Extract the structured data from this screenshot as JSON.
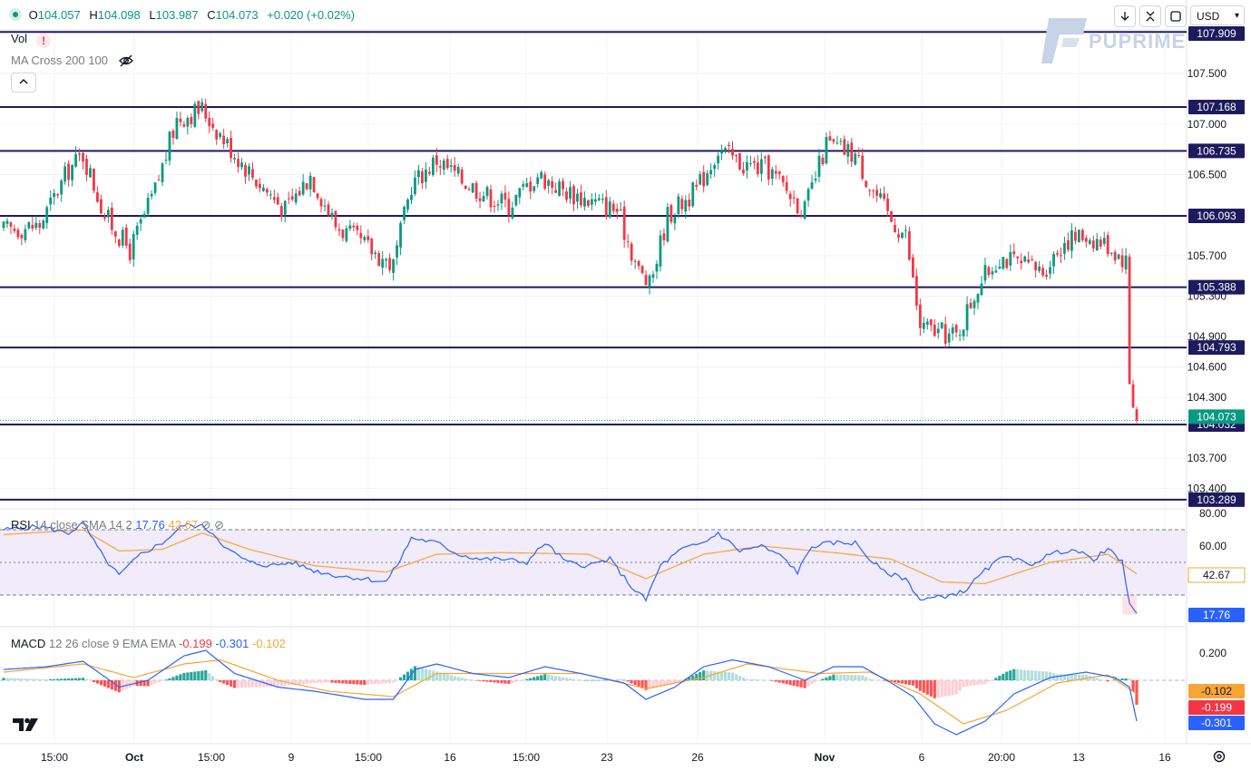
{
  "header": {
    "ohlc": [
      {
        "key": "O",
        "value": "104.057"
      },
      {
        "key": "H",
        "value": "104.098"
      },
      {
        "key": "L",
        "value": "103.987"
      },
      {
        "key": "C",
        "value": "104.073"
      }
    ],
    "change": "+0.020 (+0.02%)",
    "vol_label": "Vol",
    "ma_label": "MA Cross 200 100",
    "currency": "USD",
    "logo_text": "PUPRIME",
    "tv_logo": "17"
  },
  "colors": {
    "up": "#089981",
    "down": "#f23645",
    "level": "#1e1a5e",
    "rsi_line": "#2962ff",
    "rsi_sma": "#f7a534",
    "rsi_band": "#f1ebfa",
    "macd_line": "#2962ff",
    "signal_line": "#f7a534",
    "last_price_bg": "#089981",
    "level_label_bg": "#1e1a5e"
  },
  "chart_data": [
    {
      "type": "candlestick",
      "name": "price",
      "y_ticks": [
        "107.500",
        "107.000",
        "106.500",
        "105.700",
        "105.300",
        "104.900",
        "104.600",
        "104.300",
        "103.700",
        "103.400"
      ],
      "ylim": [
        103.2,
        108.0
      ],
      "x_tick_labels": [
        "15:00",
        "Oct",
        "15:00",
        "9",
        "15:00",
        "16",
        "15:00",
        "23",
        "26",
        "Nov",
        "6",
        "20:00",
        "13",
        "16"
      ],
      "levels": [
        {
          "label": "107.909",
          "value": 107.909
        },
        {
          "label": "107.168",
          "value": 107.168
        },
        {
          "label": "106.735",
          "value": 106.735
        },
        {
          "label": "106.093",
          "value": 106.093
        },
        {
          "label": "105.388",
          "value": 105.388
        },
        {
          "label": "104.793",
          "value": 104.793
        },
        {
          "label": "104.032",
          "value": 104.032
        },
        {
          "label": "103.289",
          "value": 103.289
        }
      ],
      "last_price": {
        "label": "104.073",
        "value": 104.073
      },
      "close_path": [
        {
          "i": 0,
          "v": 105.95
        },
        {
          "i": 10,
          "v": 106.0
        },
        {
          "i": 18,
          "v": 106.55
        },
        {
          "i": 22,
          "v": 106.7
        },
        {
          "i": 28,
          "v": 106.1
        },
        {
          "i": 35,
          "v": 105.75
        },
        {
          "i": 42,
          "v": 106.35
        },
        {
          "i": 48,
          "v": 107.05
        },
        {
          "i": 55,
          "v": 107.15
        },
        {
          "i": 62,
          "v": 106.8
        },
        {
          "i": 70,
          "v": 106.45
        },
        {
          "i": 78,
          "v": 106.15
        },
        {
          "i": 85,
          "v": 106.5
        },
        {
          "i": 92,
          "v": 106.0
        },
        {
          "i": 100,
          "v": 105.8
        },
        {
          "i": 108,
          "v": 105.6
        },
        {
          "i": 113,
          "v": 106.4
        },
        {
          "i": 120,
          "v": 106.65
        },
        {
          "i": 127,
          "v": 106.45
        },
        {
          "i": 134,
          "v": 106.3
        },
        {
          "i": 140,
          "v": 106.2
        },
        {
          "i": 148,
          "v": 106.5
        },
        {
          "i": 155,
          "v": 106.35
        },
        {
          "i": 162,
          "v": 106.25
        },
        {
          "i": 170,
          "v": 106.15
        },
        {
          "i": 176,
          "v": 105.55
        },
        {
          "i": 179,
          "v": 105.4
        },
        {
          "i": 184,
          "v": 106.1
        },
        {
          "i": 192,
          "v": 106.35
        },
        {
          "i": 198,
          "v": 106.75
        },
        {
          "i": 205,
          "v": 106.6
        },
        {
          "i": 212,
          "v": 106.55
        },
        {
          "i": 218,
          "v": 106.3
        },
        {
          "i": 222,
          "v": 106.15
        },
        {
          "i": 228,
          "v": 106.8
        },
        {
          "i": 236,
          "v": 106.7
        },
        {
          "i": 240,
          "v": 106.4
        },
        {
          "i": 246,
          "v": 106.05
        },
        {
          "i": 250,
          "v": 105.9
        },
        {
          "i": 254,
          "v": 105.0
        },
        {
          "i": 258,
          "v": 104.95
        },
        {
          "i": 264,
          "v": 104.9
        },
        {
          "i": 270,
          "v": 105.4
        },
        {
          "i": 276,
          "v": 105.7
        },
        {
          "i": 282,
          "v": 105.6
        },
        {
          "i": 288,
          "v": 105.55
        },
        {
          "i": 294,
          "v": 105.85
        },
        {
          "i": 300,
          "v": 105.9
        },
        {
          "i": 306,
          "v": 105.8
        },
        {
          "i": 311,
          "v": 105.65
        },
        {
          "i": 312,
          "v": 104.45
        },
        {
          "i": 314,
          "v": 104.07
        }
      ]
    },
    {
      "type": "line",
      "name": "RSI",
      "legend": {
        "title": "RSI",
        "params": "14 close SMA 14 2",
        "value1": "17.76",
        "value2": "42.67"
      },
      "y_ticks": [
        "80.00",
        "60.00"
      ],
      "ylim": [
        15,
        80
      ],
      "bands": [
        70,
        50,
        30
      ],
      "last_labels": [
        {
          "label": "42.67",
          "value": 42.67
        },
        {
          "label": "17.76",
          "value": 17.76
        }
      ],
      "rsi_path": [
        {
          "i": 0,
          "v": 70
        },
        {
          "i": 10,
          "v": 72
        },
        {
          "i": 18,
          "v": 68
        },
        {
          "i": 22,
          "v": 74
        },
        {
          "i": 28,
          "v": 52
        },
        {
          "i": 32,
          "v": 42
        },
        {
          "i": 38,
          "v": 55
        },
        {
          "i": 44,
          "v": 62
        },
        {
          "i": 50,
          "v": 73
        },
        {
          "i": 55,
          "v": 72
        },
        {
          "i": 58,
          "v": 68
        },
        {
          "i": 62,
          "v": 58
        },
        {
          "i": 68,
          "v": 50
        },
        {
          "i": 74,
          "v": 48
        },
        {
          "i": 80,
          "v": 50
        },
        {
          "i": 86,
          "v": 45
        },
        {
          "i": 92,
          "v": 42
        },
        {
          "i": 100,
          "v": 40
        },
        {
          "i": 106,
          "v": 38
        },
        {
          "i": 110,
          "v": 52
        },
        {
          "i": 113,
          "v": 65
        },
        {
          "i": 120,
          "v": 62
        },
        {
          "i": 126,
          "v": 55
        },
        {
          "i": 132,
          "v": 52
        },
        {
          "i": 138,
          "v": 52
        },
        {
          "i": 145,
          "v": 50
        },
        {
          "i": 150,
          "v": 62
        },
        {
          "i": 156,
          "v": 50
        },
        {
          "i": 162,
          "v": 48
        },
        {
          "i": 168,
          "v": 52
        },
        {
          "i": 174,
          "v": 35
        },
        {
          "i": 178,
          "v": 27
        },
        {
          "i": 182,
          "v": 48
        },
        {
          "i": 188,
          "v": 58
        },
        {
          "i": 194,
          "v": 62
        },
        {
          "i": 198,
          "v": 68
        },
        {
          "i": 204,
          "v": 57
        },
        {
          "i": 210,
          "v": 60
        },
        {
          "i": 216,
          "v": 53
        },
        {
          "i": 220,
          "v": 44
        },
        {
          "i": 224,
          "v": 60
        },
        {
          "i": 230,
          "v": 62
        },
        {
          "i": 236,
          "v": 62
        },
        {
          "i": 240,
          "v": 52
        },
        {
          "i": 244,
          "v": 44
        },
        {
          "i": 250,
          "v": 40
        },
        {
          "i": 254,
          "v": 27
        },
        {
          "i": 260,
          "v": 29
        },
        {
          "i": 266,
          "v": 32
        },
        {
          "i": 272,
          "v": 45
        },
        {
          "i": 278,
          "v": 55
        },
        {
          "i": 284,
          "v": 48
        },
        {
          "i": 290,
          "v": 55
        },
        {
          "i": 296,
          "v": 58
        },
        {
          "i": 302,
          "v": 52
        },
        {
          "i": 306,
          "v": 58
        },
        {
          "i": 310,
          "v": 50
        },
        {
          "i": 312,
          "v": 26
        },
        {
          "i": 314,
          "v": 18
        }
      ],
      "sma_path": [
        {
          "i": 0,
          "v": 67
        },
        {
          "i": 22,
          "v": 70
        },
        {
          "i": 32,
          "v": 57
        },
        {
          "i": 44,
          "v": 58
        },
        {
          "i": 55,
          "v": 68
        },
        {
          "i": 68,
          "v": 58
        },
        {
          "i": 86,
          "v": 48
        },
        {
          "i": 106,
          "v": 44
        },
        {
          "i": 120,
          "v": 55
        },
        {
          "i": 138,
          "v": 56
        },
        {
          "i": 162,
          "v": 55
        },
        {
          "i": 178,
          "v": 40
        },
        {
          "i": 194,
          "v": 55
        },
        {
          "i": 210,
          "v": 60
        },
        {
          "i": 230,
          "v": 56
        },
        {
          "i": 246,
          "v": 52
        },
        {
          "i": 260,
          "v": 38
        },
        {
          "i": 272,
          "v": 37
        },
        {
          "i": 290,
          "v": 50
        },
        {
          "i": 306,
          "v": 55
        },
        {
          "i": 314,
          "v": 43
        }
      ]
    },
    {
      "type": "histogram+line",
      "name": "MACD",
      "legend": {
        "title": "MACD",
        "params": "12 26 close 9 EMA EMA",
        "value1": "-0.199",
        "value2": "-0.301",
        "value3": "-0.102"
      },
      "y_ticks": [
        "0.200"
      ],
      "ylim": [
        -0.55,
        0.3
      ],
      "last_labels": [
        {
          "label": "-0.102",
          "value": -0.102
        },
        {
          "label": "-0.199",
          "value": -0.199
        },
        {
          "label": "-0.301",
          "value": -0.301
        }
      ],
      "macd_path": [
        {
          "i": 0,
          "v": 0.08
        },
        {
          "i": 12,
          "v": 0.1
        },
        {
          "i": 22,
          "v": 0.14
        },
        {
          "i": 32,
          "v": -0.05
        },
        {
          "i": 40,
          "v": 0.0
        },
        {
          "i": 50,
          "v": 0.18
        },
        {
          "i": 56,
          "v": 0.22
        },
        {
          "i": 64,
          "v": 0.05
        },
        {
          "i": 76,
          "v": -0.05
        },
        {
          "i": 86,
          "v": -0.08
        },
        {
          "i": 100,
          "v": -0.14
        },
        {
          "i": 108,
          "v": -0.14
        },
        {
          "i": 114,
          "v": 0.08
        },
        {
          "i": 120,
          "v": 0.12
        },
        {
          "i": 130,
          "v": 0.05
        },
        {
          "i": 140,
          "v": 0.02
        },
        {
          "i": 150,
          "v": 0.1
        },
        {
          "i": 160,
          "v": 0.05
        },
        {
          "i": 172,
          "v": -0.02
        },
        {
          "i": 178,
          "v": -0.14
        },
        {
          "i": 186,
          "v": -0.05
        },
        {
          "i": 194,
          "v": 0.1
        },
        {
          "i": 202,
          "v": 0.15
        },
        {
          "i": 212,
          "v": 0.1
        },
        {
          "i": 222,
          "v": 0.0
        },
        {
          "i": 230,
          "v": 0.1
        },
        {
          "i": 238,
          "v": 0.1
        },
        {
          "i": 246,
          "v": -0.02
        },
        {
          "i": 252,
          "v": -0.12
        },
        {
          "i": 258,
          "v": -0.32
        },
        {
          "i": 264,
          "v": -0.4
        },
        {
          "i": 272,
          "v": -0.3
        },
        {
          "i": 280,
          "v": -0.1
        },
        {
          "i": 290,
          "v": 0.02
        },
        {
          "i": 300,
          "v": 0.06
        },
        {
          "i": 308,
          "v": 0.02
        },
        {
          "i": 312,
          "v": -0.05
        },
        {
          "i": 314,
          "v": -0.3
        }
      ],
      "signal_path": [
        {
          "i": 0,
          "v": 0.06
        },
        {
          "i": 22,
          "v": 0.12
        },
        {
          "i": 36,
          "v": 0.02
        },
        {
          "i": 50,
          "v": 0.12
        },
        {
          "i": 60,
          "v": 0.15
        },
        {
          "i": 76,
          "v": 0.0
        },
        {
          "i": 90,
          "v": -0.08
        },
        {
          "i": 108,
          "v": -0.12
        },
        {
          "i": 120,
          "v": 0.05
        },
        {
          "i": 140,
          "v": 0.05
        },
        {
          "i": 160,
          "v": 0.05
        },
        {
          "i": 178,
          "v": -0.06
        },
        {
          "i": 194,
          "v": 0.02
        },
        {
          "i": 206,
          "v": 0.12
        },
        {
          "i": 226,
          "v": 0.05
        },
        {
          "i": 240,
          "v": 0.06
        },
        {
          "i": 254,
          "v": -0.1
        },
        {
          "i": 266,
          "v": -0.32
        },
        {
          "i": 278,
          "v": -0.22
        },
        {
          "i": 292,
          "v": -0.02
        },
        {
          "i": 306,
          "v": 0.04
        },
        {
          "i": 314,
          "v": -0.1
        }
      ]
    }
  ]
}
